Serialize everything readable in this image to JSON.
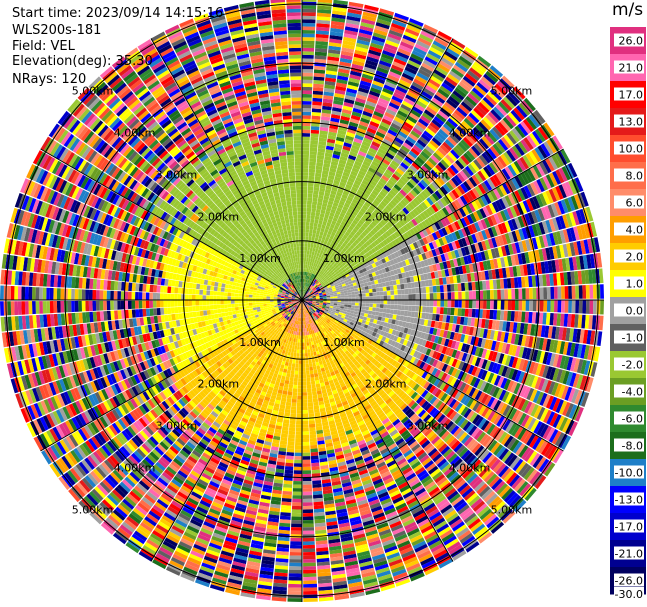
{
  "info": {
    "start_time": "Start time: 2023/09/14 14:15:16",
    "instrument": "WLS200s-181",
    "field": "Field: VEL",
    "elevation": "Elevation(deg): 35.30",
    "nrays": "NRays: 120"
  },
  "colorbar": {
    "unit": "m/s",
    "ticks": [
      "26.0",
      "21.0",
      "17.0",
      "13.0",
      "10.0",
      "8.0",
      "6.0",
      "4.0",
      "2.0",
      "1.0",
      "0.0",
      "-1.0",
      "-2.0",
      "-4.0",
      "-6.0",
      "-8.0",
      "-10.0",
      "-13.0",
      "-17.0",
      "-21.0",
      "-26.0",
      "-30.0"
    ],
    "colors": [
      "#e0307f",
      "#ff66b0",
      "#ff0000",
      "#e41a1a",
      "#ff4d2e",
      "#ff6e4a",
      "#ff8c6a",
      "#ff9e00",
      "#ffcc00",
      "#ffff00",
      "#a0a0a0",
      "#606060",
      "#9ac832",
      "#6b9e23",
      "#2f8a2f",
      "#1c6e1c",
      "#1e7fc8",
      "#0000ff",
      "#0000cd",
      "#000090",
      "#000060"
    ]
  },
  "chart_data": {
    "type": "ppi",
    "field": "VEL",
    "units": "m/s",
    "nrays": 120,
    "elevation_deg": 35.3,
    "range_rings_km": [
      1.0,
      2.0,
      3.0,
      4.0,
      5.0
    ],
    "range_ring_labels": [
      "1.00km",
      "2.00km",
      "3.00km",
      "4.00km",
      "5.00km"
    ],
    "max_range_km": 5.1,
    "azimuth_spokes_deg": [
      0,
      30,
      60,
      90,
      120,
      150,
      180,
      210,
      240,
      270,
      300,
      330
    ],
    "velocity_regions": [
      {
        "sector": "north",
        "azimuth_deg": [
          300,
          60
        ],
        "range_km": [
          0.4,
          3.0
        ],
        "velocity_ms": -3.0
      },
      {
        "sector": "east",
        "azimuth_deg": [
          60,
          120
        ],
        "range_km": [
          0.4,
          2.2
        ],
        "velocity_ms": -0.5
      },
      {
        "sector": "south",
        "azimuth_deg": [
          120,
          240
        ],
        "range_km": [
          0.4,
          2.6
        ],
        "velocity_ms": 1.5
      },
      {
        "sector": "west",
        "azimuth_deg": [
          240,
          300
        ],
        "range_km": [
          0.4,
          2.4
        ],
        "velocity_ms": 0.5
      },
      {
        "sector": "near-center south",
        "azimuth_deg": [
          150,
          210
        ],
        "range_km": [
          0.0,
          0.6
        ],
        "velocity_ms": 4.0
      },
      {
        "sector": "near-center north",
        "azimuth_deg": [
          330,
          30
        ],
        "range_km": [
          0.0,
          0.5
        ],
        "velocity_ms": -6.0
      },
      {
        "sector": "outer noise",
        "azimuth_deg": [
          0,
          360
        ],
        "range_km": [
          3.0,
          5.1
        ],
        "velocity_ms": null
      }
    ]
  }
}
